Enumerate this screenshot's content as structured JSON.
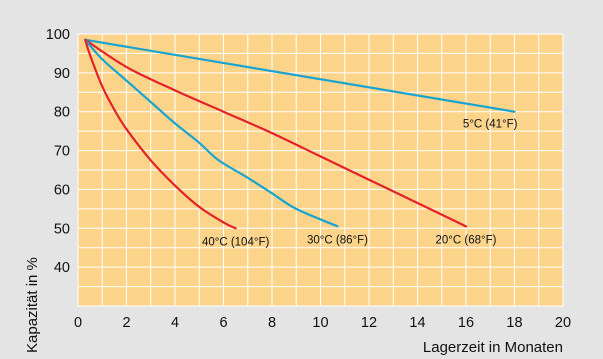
{
  "chart_data": {
    "type": "line",
    "xlabel": "Lagerzeit in Monaten",
    "ylabel": "Kapazität in %",
    "xlim": [
      0,
      20
    ],
    "ylim": [
      30,
      100
    ],
    "x_ticks": [
      "0",
      "2",
      "4",
      "6",
      "8",
      "10",
      "12",
      "14",
      "16",
      "18",
      "20"
    ],
    "y_ticks": [
      "40",
      "50",
      "60",
      "70",
      "80",
      "90",
      "100"
    ],
    "grid": true,
    "colors": {
      "background": "#e4e4e4",
      "plot_bg": "#fbd48a",
      "grid": "#ffffff"
    },
    "series": [
      {
        "name": "5°C (41°F)",
        "color": "#1aa3cf",
        "x": [
          0.3,
          18
        ],
        "y": [
          98.5,
          80
        ]
      },
      {
        "name": "20°C (68°F)",
        "color": "#e3222a",
        "x": [
          0.3,
          2,
          4,
          6,
          8,
          10,
          12,
          14,
          16
        ],
        "y": [
          98.5,
          91.5,
          85.5,
          80,
          74.5,
          68.5,
          62.5,
          56.5,
          50.5
        ]
      },
      {
        "name": "30°C (86°F)",
        "color": "#1aa3cf",
        "x": [
          0.3,
          1,
          2,
          3,
          4,
          5,
          5.8,
          7,
          8,
          9,
          10.7
        ],
        "y": [
          98.5,
          93.5,
          88,
          82.5,
          77,
          72,
          67.5,
          63,
          59,
          55,
          50.5
        ]
      },
      {
        "name": "40°C (104°F)",
        "color": "#e3222a",
        "x": [
          0.3,
          0.5,
          1,
          1.5,
          2,
          3,
          4,
          5,
          6,
          6.5
        ],
        "y": [
          98.5,
          94.5,
          86.5,
          80.5,
          75.5,
          67.5,
          61,
          55.5,
          51.5,
          50
        ]
      }
    ]
  }
}
